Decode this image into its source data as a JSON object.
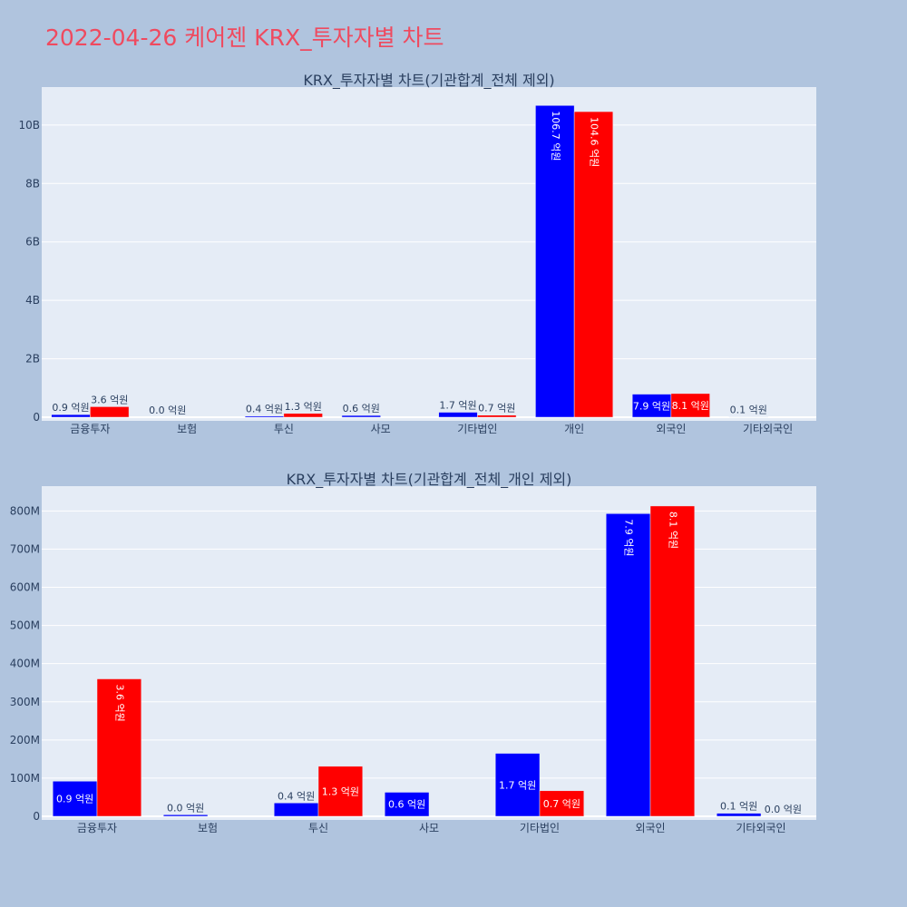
{
  "page": {
    "title": "2022-04-26 케어젠 KRX_투자자별 차트"
  },
  "colors": {
    "background": "#b0c4de",
    "plot_bg": "#e5ecf6",
    "title": "#ef4a5f",
    "series1": "#0000ff",
    "series2": "#ff0000",
    "text": "#2a3f5f",
    "grid": "#ffffff"
  },
  "chart_data": [
    {
      "type": "bar",
      "title": "KRX_투자자별 차트(기관합계_전체 제외)",
      "categories": [
        "금융투자",
        "보험",
        "투신",
        "사모",
        "기타법인",
        "개인",
        "외국인",
        "기타외국인"
      ],
      "ylim": [
        0,
        11300000000
      ],
      "yticks": [
        0,
        2000000000,
        4000000000,
        6000000000,
        8000000000,
        10000000000
      ],
      "ytick_labels": [
        "0",
        "2B",
        "4B",
        "6B",
        "8B",
        "10B"
      ],
      "grid": true,
      "series": [
        {
          "color": "#0000ff",
          "values": [
            90000000,
            0,
            40000000,
            60000000,
            170000000,
            10670000000,
            790000000,
            10000000
          ],
          "labels": [
            "0.9 억원",
            "0.0 억원",
            "0.4 억원",
            "0.6 억원",
            "1.7 억원",
            "106.7 억원",
            "7.9 억원",
            "0.1 억원"
          ]
        },
        {
          "color": "#ff0000",
          "values": [
            360000000,
            null,
            130000000,
            null,
            70000000,
            10460000000,
            810000000,
            null
          ],
          "labels": [
            "3.6 억원",
            "",
            "1.3 억원",
            "",
            "0.7 억원",
            "104.6 억원",
            "8.1 억원",
            ""
          ]
        }
      ]
    },
    {
      "type": "bar",
      "title": "KRX_투자자별 차트(기관합계_전체_개인 제외)",
      "categories": [
        "금융투자",
        "보험",
        "투신",
        "사모",
        "기타법인",
        "외국인",
        "기타외국인"
      ],
      "ylim": [
        0,
        865000000
      ],
      "yticks": [
        0,
        100000000,
        200000000,
        300000000,
        400000000,
        500000000,
        600000000,
        700000000,
        800000000
      ],
      "ytick_labels": [
        "0",
        "100M",
        "200M",
        "300M",
        "400M",
        "500M",
        "600M",
        "700M",
        "800M"
      ],
      "grid": true,
      "series": [
        {
          "color": "#0000ff",
          "values": [
            92000000,
            4000000,
            35000000,
            63000000,
            165000000,
            793000000,
            8000000
          ],
          "labels": [
            "0.9 억원",
            "0.0 억원",
            "0.4 억원",
            "0.6 억원",
            "1.7 억원",
            "7.9 억원",
            "0.1 억원"
          ]
        },
        {
          "color": "#ff0000",
          "values": [
            360000000,
            null,
            131000000,
            null,
            67000000,
            813000000,
            0
          ],
          "labels": [
            "3.6 억원",
            "",
            "1.3 억원",
            "",
            "0.7 억원",
            "8.1 억원",
            "0.0 억원"
          ]
        }
      ]
    }
  ]
}
